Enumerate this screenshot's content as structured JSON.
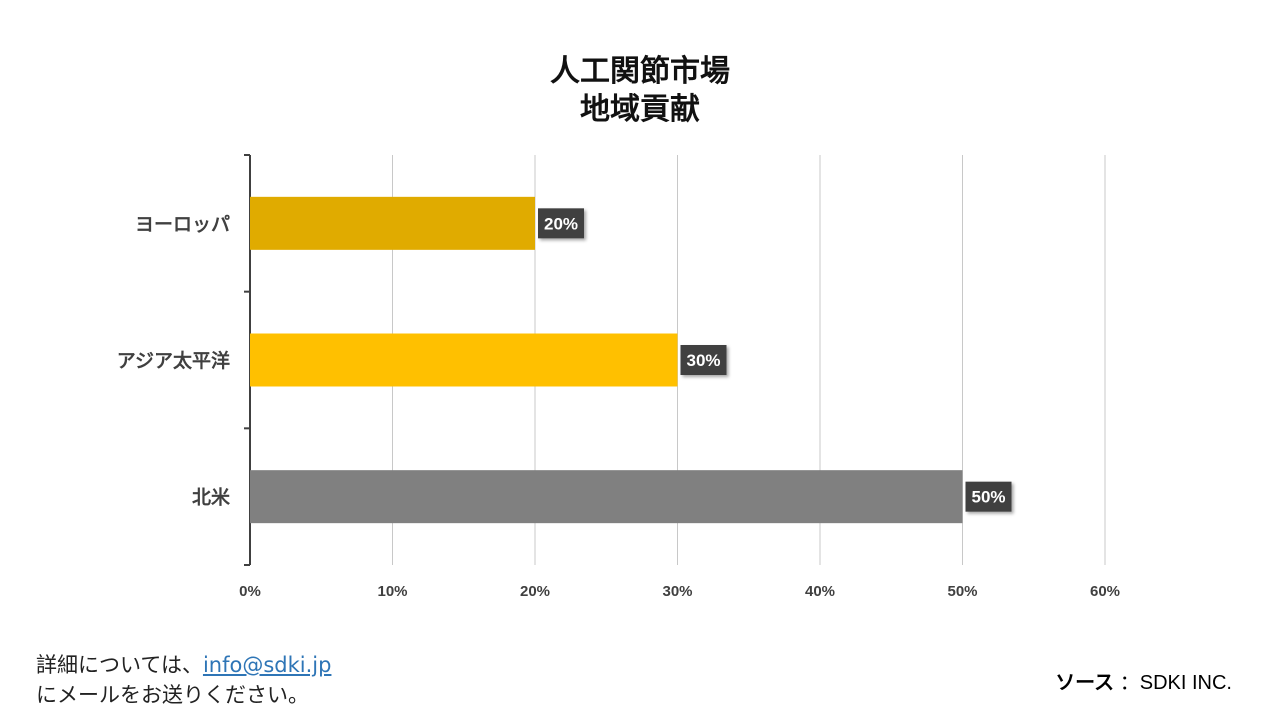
{
  "chart_data": {
    "type": "bar",
    "orientation": "horizontal",
    "title": "人工関節市場",
    "subtitle": "地域貢献",
    "categories": [
      "ヨーロッパ",
      "アジア太平洋",
      "北米"
    ],
    "values": [
      20,
      30,
      50
    ],
    "data_labels": [
      "20%",
      "30%",
      "50%"
    ],
    "colors": [
      "#e0ab00",
      "#ffc000",
      "#808080"
    ],
    "xlim": [
      0,
      60
    ],
    "xticks": [
      0,
      10,
      20,
      30,
      40,
      50,
      60
    ],
    "xtick_labels": [
      "0%",
      "10%",
      "20%",
      "30%",
      "40%",
      "50%",
      "60%"
    ],
    "grid": true,
    "legend": "none"
  },
  "footer": {
    "contact_prefix": "詳細については、",
    "contact_email": "info@sdki.jp",
    "contact_suffix": "にメールをお送りください。",
    "source_label": "ソース",
    "source_value": "：SDKI INC."
  }
}
